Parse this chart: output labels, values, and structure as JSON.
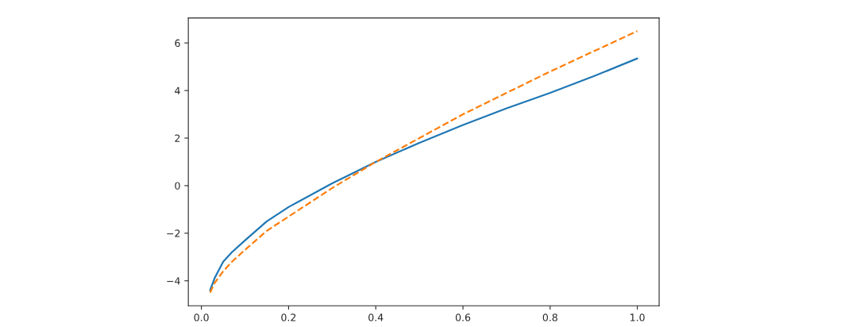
{
  "chart_data": {
    "type": "line",
    "x": [
      0.02,
      0.03,
      0.05,
      0.07,
      0.1,
      0.15,
      0.2,
      0.3,
      0.4,
      0.5,
      0.6,
      0.7,
      0.8,
      0.9,
      1.0
    ],
    "series": [
      {
        "color": "#1f77b4",
        "line_style": "solid",
        "values": [
          -4.4,
          -3.9,
          -3.2,
          -2.8,
          -2.3,
          -1.5,
          -0.9,
          0.1,
          1.0,
          1.8,
          2.55,
          3.25,
          3.9,
          4.6,
          5.35
        ]
      },
      {
        "color": "#ff7f0e",
        "line_style": "dashed",
        "values": [
          -4.5,
          -4.1,
          -3.6,
          -3.2,
          -2.7,
          -1.9,
          -1.3,
          -0.1,
          1.0,
          2.0,
          3.0,
          3.9,
          4.8,
          5.65,
          6.5
        ]
      }
    ],
    "xlim": [
      -0.03,
      1.05
    ],
    "ylim": [
      -5.05,
      7.05
    ],
    "xticks": [
      {
        "value": 0,
        "label": "0.0"
      },
      0.2,
      0.4,
      0.6,
      0.8,
      {
        "value": 1,
        "label": "1.0"
      }
    ],
    "yticks": [
      {
        "value": -4,
        "label": "−4"
      },
      {
        "value": -2,
        "label": "−2"
      },
      0,
      2,
      4,
      6
    ],
    "grid": false
  }
}
